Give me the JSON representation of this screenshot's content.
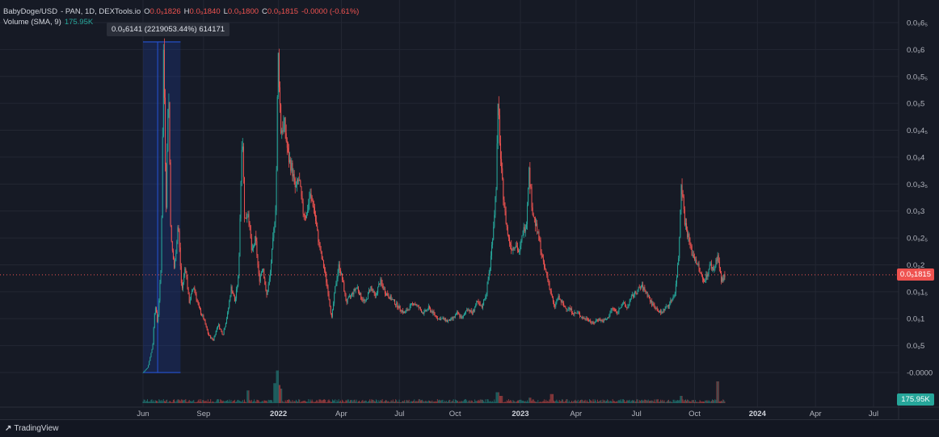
{
  "legend": {
    "symbol": "BabyDoge/USD",
    "source": "- PAN, 1D, DEXTools.io",
    "o_label": "O",
    "o_value": "0.0₉1826",
    "h_label": "H",
    "h_value": "0.0₉1840",
    "l_label": "L",
    "l_value": "0.0₉1800",
    "c_label": "C",
    "c_value": "0.0₉1815",
    "change": "-0.0000 (-0.61%)",
    "volume_label": "Volume (SMA, 9)",
    "volume_value": "175.95K"
  },
  "measure_tooltip": "0.0₉6141 (2219053.44%) 614171",
  "current_price_label": "0.0₉1815",
  "current_volume_label": "175.95K",
  "footer_brand": "TradingView",
  "colors": {
    "up": "#26a69a",
    "down": "#ef5350",
    "background": "#161a25",
    "grid": "#232733",
    "measure_fill": "#1e3a8a",
    "measure_line": "#2962ff"
  },
  "chart_data": {
    "type": "candlestick",
    "title": "BabyDoge/USD",
    "y_scale": "linear",
    "ylim": [
      -0.0,
      0.65
    ],
    "y_ticks": [
      {
        "v": 0.65,
        "label": "0.0₉6₅"
      },
      {
        "v": 0.6,
        "label": "0.0₉6"
      },
      {
        "v": 0.55,
        "label": "0.0₉5₅"
      },
      {
        "v": 0.5,
        "label": "0.0₉5"
      },
      {
        "v": 0.45,
        "label": "0.0₉4₅"
      },
      {
        "v": 0.4,
        "label": "0.0₉4"
      },
      {
        "v": 0.35,
        "label": "0.0₉3₅"
      },
      {
        "v": 0.3,
        "label": "0.0₉3"
      },
      {
        "v": 0.25,
        "label": "0.0₉2₅"
      },
      {
        "v": 0.2,
        "label": "0.0₉2"
      },
      {
        "v": 0.15,
        "label": "0.0₉1₅"
      },
      {
        "v": 0.1,
        "label": "0.0₉1"
      },
      {
        "v": 0.05,
        "label": "0.0₉5"
      },
      {
        "v": 0.0,
        "label": "-0.0000"
      }
    ],
    "x_ticks": [
      {
        "t": 0.0,
        "label": "Jun",
        "bold": false
      },
      {
        "t": 2.5,
        "label": "Sep",
        "bold": false
      },
      {
        "t": 5.6,
        "label": "2022",
        "bold": true
      },
      {
        "t": 8.2,
        "label": "Apr",
        "bold": false
      },
      {
        "t": 10.6,
        "label": "Jul",
        "bold": false
      },
      {
        "t": 12.9,
        "label": "Oct",
        "bold": false
      },
      {
        "t": 15.6,
        "label": "2023",
        "bold": true
      },
      {
        "t": 17.9,
        "label": "Apr",
        "bold": false
      },
      {
        "t": 20.4,
        "label": "Jul",
        "bold": false
      },
      {
        "t": 22.8,
        "label": "Oct",
        "bold": false
      },
      {
        "t": 25.4,
        "label": "2024",
        "bold": true
      },
      {
        "t": 27.8,
        "label": "Apr",
        "bold": false
      },
      {
        "t": 30.2,
        "label": "Jul",
        "bold": false
      }
    ],
    "x_range": [
      -0.4,
      31.4
    ],
    "price_path": [
      [
        0.0,
        0.0
      ],
      [
        0.2,
        0.01
      ],
      [
        0.4,
        0.05
      ],
      [
        0.5,
        0.13
      ],
      [
        0.6,
        0.09
      ],
      [
        0.75,
        0.2
      ],
      [
        0.85,
        0.614
      ],
      [
        0.95,
        0.3
      ],
      [
        1.05,
        0.55
      ],
      [
        1.15,
        0.25
      ],
      [
        1.3,
        0.19
      ],
      [
        1.45,
        0.28
      ],
      [
        1.6,
        0.15
      ],
      [
        1.75,
        0.2
      ],
      [
        1.9,
        0.13
      ],
      [
        2.1,
        0.16
      ],
      [
        2.3,
        0.12
      ],
      [
        2.5,
        0.1
      ],
      [
        2.7,
        0.07
      ],
      [
        2.9,
        0.06
      ],
      [
        3.1,
        0.09
      ],
      [
        3.3,
        0.07
      ],
      [
        3.5,
        0.11
      ],
      [
        3.65,
        0.16
      ],
      [
        3.8,
        0.13
      ],
      [
        3.95,
        0.18
      ],
      [
        4.1,
        0.46
      ],
      [
        4.2,
        0.28
      ],
      [
        4.35,
        0.3
      ],
      [
        4.5,
        0.22
      ],
      [
        4.65,
        0.25
      ],
      [
        4.8,
        0.17
      ],
      [
        4.95,
        0.2
      ],
      [
        5.1,
        0.14
      ],
      [
        5.25,
        0.18
      ],
      [
        5.4,
        0.26
      ],
      [
        5.5,
        0.32
      ],
      [
        5.58,
        0.6
      ],
      [
        5.7,
        0.45
      ],
      [
        5.85,
        0.46
      ],
      [
        6.0,
        0.4
      ],
      [
        6.15,
        0.38
      ],
      [
        6.3,
        0.34
      ],
      [
        6.45,
        0.36
      ],
      [
        6.6,
        0.3
      ],
      [
        6.75,
        0.29
      ],
      [
        6.9,
        0.33
      ],
      [
        7.05,
        0.31
      ],
      [
        7.2,
        0.26
      ],
      [
        7.35,
        0.22
      ],
      [
        7.5,
        0.19
      ],
      [
        7.65,
        0.15
      ],
      [
        7.8,
        0.1
      ],
      [
        7.95,
        0.16
      ],
      [
        8.1,
        0.2
      ],
      [
        8.25,
        0.17
      ],
      [
        8.4,
        0.13
      ],
      [
        8.55,
        0.14
      ],
      [
        8.7,
        0.15
      ],
      [
        8.85,
        0.16
      ],
      [
        9.0,
        0.14
      ],
      [
        9.2,
        0.13
      ],
      [
        9.4,
        0.16
      ],
      [
        9.6,
        0.14
      ],
      [
        9.8,
        0.17
      ],
      [
        10.0,
        0.15
      ],
      [
        10.2,
        0.14
      ],
      [
        10.4,
        0.13
      ],
      [
        10.6,
        0.12
      ],
      [
        10.8,
        0.11
      ],
      [
        11.0,
        0.12
      ],
      [
        11.2,
        0.13
      ],
      [
        11.4,
        0.12
      ],
      [
        11.6,
        0.11
      ],
      [
        11.8,
        0.12
      ],
      [
        12.0,
        0.11
      ],
      [
        12.2,
        0.1
      ],
      [
        12.4,
        0.1
      ],
      [
        12.6,
        0.095
      ],
      [
        12.8,
        0.1
      ],
      [
        13.0,
        0.11
      ],
      [
        13.2,
        0.1
      ],
      [
        13.4,
        0.12
      ],
      [
        13.6,
        0.11
      ],
      [
        13.8,
        0.13
      ],
      [
        14.0,
        0.12
      ],
      [
        14.2,
        0.15
      ],
      [
        14.35,
        0.2
      ],
      [
        14.5,
        0.28
      ],
      [
        14.6,
        0.35
      ],
      [
        14.68,
        0.5
      ],
      [
        14.8,
        0.38
      ],
      [
        14.95,
        0.3
      ],
      [
        15.1,
        0.25
      ],
      [
        15.25,
        0.23
      ],
      [
        15.4,
        0.24
      ],
      [
        15.55,
        0.22
      ],
      [
        15.7,
        0.26
      ],
      [
        15.85,
        0.28
      ],
      [
        15.95,
        0.38
      ],
      [
        16.1,
        0.3
      ],
      [
        16.25,
        0.27
      ],
      [
        16.4,
        0.24
      ],
      [
        16.55,
        0.2
      ],
      [
        16.7,
        0.18
      ],
      [
        16.85,
        0.15
      ],
      [
        17.0,
        0.12
      ],
      [
        17.15,
        0.14
      ],
      [
        17.3,
        0.13
      ],
      [
        17.45,
        0.12
      ],
      [
        17.6,
        0.12
      ],
      [
        17.8,
        0.11
      ],
      [
        18.0,
        0.11
      ],
      [
        18.2,
        0.1
      ],
      [
        18.4,
        0.1
      ],
      [
        18.6,
        0.09
      ],
      [
        18.8,
        0.1
      ],
      [
        19.0,
        0.095
      ],
      [
        19.2,
        0.1
      ],
      [
        19.4,
        0.12
      ],
      [
        19.6,
        0.11
      ],
      [
        19.8,
        0.13
      ],
      [
        20.0,
        0.12
      ],
      [
        20.2,
        0.14
      ],
      [
        20.4,
        0.15
      ],
      [
        20.6,
        0.16
      ],
      [
        20.8,
        0.15
      ],
      [
        21.0,
        0.13
      ],
      [
        21.2,
        0.12
      ],
      [
        21.4,
        0.11
      ],
      [
        21.6,
        0.12
      ],
      [
        21.8,
        0.13
      ],
      [
        22.0,
        0.15
      ],
      [
        22.15,
        0.22
      ],
      [
        22.25,
        0.36
      ],
      [
        22.4,
        0.28
      ],
      [
        22.55,
        0.25
      ],
      [
        22.7,
        0.22
      ],
      [
        22.85,
        0.21
      ],
      [
        23.0,
        0.19
      ],
      [
        23.15,
        0.17
      ],
      [
        23.3,
        0.18
      ],
      [
        23.45,
        0.2
      ],
      [
        23.6,
        0.19
      ],
      [
        23.75,
        0.22
      ],
      [
        23.9,
        0.17
      ],
      [
        24.05,
        0.18
      ]
    ],
    "volume_spikes": [
      [
        4.35,
        0.35
      ],
      [
        5.45,
        0.55
      ],
      [
        5.55,
        0.9
      ],
      [
        5.62,
        0.5
      ],
      [
        5.7,
        0.4
      ],
      [
        14.65,
        0.3
      ],
      [
        14.8,
        0.2
      ],
      [
        16.0,
        0.15
      ],
      [
        16.9,
        0.25
      ],
      [
        22.25,
        0.2
      ],
      [
        23.75,
        0.6
      ]
    ],
    "measure_range": {
      "t_start": 0.0,
      "t_end": 1.55,
      "price_low": 0.0,
      "price_high": 0.614
    }
  }
}
